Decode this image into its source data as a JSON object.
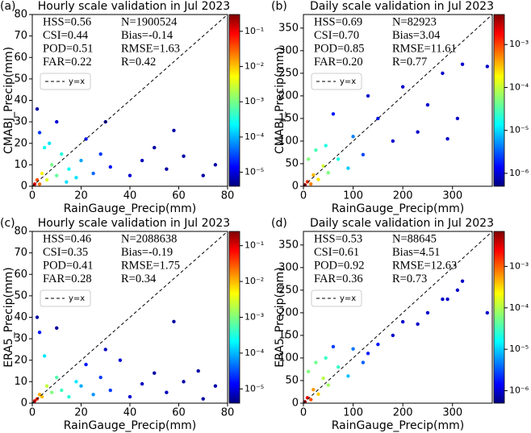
{
  "chart_data": [
    {
      "type": "scatter",
      "panel_label": "(a)",
      "title": "Hourly scale validation in Jul 2023",
      "xlabel": "RainGauge_Precip(mm)",
      "ylabel": "CMABJ_Precip(mm)",
      "xlim": [
        0,
        80
      ],
      "xticks": [
        0,
        20,
        40,
        60,
        80
      ],
      "ylim": [
        0,
        80
      ],
      "yticks": [
        0,
        10,
        20,
        30,
        40,
        50,
        60,
        70,
        80
      ],
      "stats": [
        "HSS=0.56",
        "N=1900524",
        "CSI=0.44",
        "Bias=-0.14",
        "POD=0.51",
        "RMSE=1.63",
        "FAR=0.22",
        "R=0.42"
      ],
      "legend_label": "y=x",
      "colormap": "jet",
      "colorbar_scale": "log",
      "clim": [
        4e-06,
        0.3
      ],
      "cticks": [
        {
          "value": 1e-05,
          "label": "10⁻⁵"
        },
        {
          "value": 0.0001,
          "label": "10⁻⁴"
        },
        {
          "value": 0.001,
          "label": "10⁻³"
        },
        {
          "value": 0.01,
          "label": "10⁻²"
        },
        {
          "value": 0.1,
          "label": "10⁻¹"
        }
      ],
      "x": [
        1,
        2,
        3,
        4,
        6,
        8,
        10,
        12,
        15,
        18,
        5,
        20,
        25,
        28,
        32,
        3,
        40,
        45,
        50,
        55,
        62,
        70,
        75,
        30,
        10,
        2,
        58,
        22,
        14,
        7
      ],
      "y": [
        1,
        3,
        1,
        6,
        3,
        10,
        5,
        15,
        8,
        4,
        18,
        12,
        6,
        15,
        9,
        25,
        5,
        12,
        18,
        8,
        14,
        5,
        10,
        30,
        30,
        36,
        26,
        22,
        2,
        20
      ],
      "density": [
        0.1,
        0.03,
        0.02,
        0.005,
        0.003,
        0.001,
        0.0008,
        0.0004,
        0.0003,
        0.0002,
        0.0003,
        0.0001,
        5e-05,
        3e-05,
        2e-05,
        3e-05,
        1e-05,
        8e-06,
        6e-06,
        6e-06,
        6e-06,
        6e-06,
        6e-06,
        6e-06,
        1e-05,
        6e-06,
        6e-06,
        2e-05,
        0.0002,
        0.0002
      ]
    },
    {
      "type": "scatter",
      "panel_label": "(b)",
      "title": "Daily scale validation in Jul 2023",
      "xlabel": "RainGauge_Precip(mm)",
      "ylabel": "CMABJ_Precip(mm)",
      "xlim": [
        0,
        380
      ],
      "xticks": [
        0,
        100,
        200,
        300
      ],
      "ylim": [
        0,
        380
      ],
      "yticks": [
        0,
        50,
        100,
        150,
        200,
        250,
        300,
        350
      ],
      "stats": [
        "HSS=0.69",
        "N=82923",
        "CSI=0.70",
        "Bias=3.04",
        "POD=0.85",
        "RMSE=11.61",
        "FAR=0.20",
        "R=0.77"
      ],
      "legend_label": "y=x",
      "colormap": "jet",
      "colorbar_scale": "log",
      "clim": [
        5e-07,
        0.005
      ],
      "cticks": [
        {
          "value": 1e-06,
          "label": "10⁻⁶"
        },
        {
          "value": 1e-05,
          "label": "10⁻⁵"
        },
        {
          "value": 0.0001,
          "label": "10⁻⁴"
        },
        {
          "value": 0.001,
          "label": "10⁻³"
        }
      ],
      "x": [
        3,
        8,
        15,
        20,
        30,
        40,
        50,
        10,
        70,
        90,
        100,
        120,
        150,
        180,
        200,
        250,
        280,
        320,
        310,
        370,
        60,
        130,
        230,
        290,
        25,
        45
      ],
      "y": [
        3,
        10,
        5,
        25,
        15,
        45,
        30,
        60,
        60,
        40,
        110,
        70,
        150,
        100,
        220,
        180,
        250,
        270,
        150,
        265,
        160,
        200,
        120,
        105,
        80,
        90
      ],
      "density": [
        0.003,
        0.001,
        0.0005,
        0.0003,
        0.0002,
        0.0001,
        5e-05,
        5e-05,
        2e-05,
        1e-05,
        5e-06,
        3e-06,
        2e-06,
        1e-06,
        1e-06,
        1e-06,
        1e-06,
        1e-06,
        1e-06,
        1e-06,
        2e-06,
        1e-06,
        1e-06,
        1e-06,
        3e-05,
        2e-05
      ]
    },
    {
      "type": "scatter",
      "panel_label": "(c)",
      "title": "Hourly scale validation in Jul 2023",
      "xlabel": "RainGauge_Precip(mm)",
      "ylabel": "ERA5_Precip(mm)",
      "xlim": [
        0,
        80
      ],
      "xticks": [
        0,
        20,
        40,
        60,
        80
      ],
      "ylim": [
        0,
        80
      ],
      "yticks": [
        0,
        10,
        20,
        30,
        40,
        50,
        60,
        70,
        80
      ],
      "stats": [
        "HSS=0.46",
        "N=2088638",
        "CSI=0.35",
        "Bias=-0.19",
        "POD=0.41",
        "RMSE=1.75",
        "FAR=0.28",
        "R=0.34"
      ],
      "legend_label": "y=x",
      "colormap": "jet",
      "colorbar_scale": "log",
      "clim": [
        4e-06,
        0.25
      ],
      "cticks": [
        {
          "value": 1e-05,
          "label": "10⁻⁵"
        },
        {
          "value": 0.0001,
          "label": "10⁻⁴"
        },
        {
          "value": 0.001,
          "label": "10⁻³"
        },
        {
          "value": 0.01,
          "label": "10⁻²"
        },
        {
          "value": 0.1,
          "label": "10⁻¹"
        }
      ],
      "x": [
        1,
        2,
        3,
        4,
        6,
        8,
        10,
        12,
        15,
        18,
        5,
        20,
        25,
        28,
        32,
        3,
        40,
        45,
        50,
        55,
        62,
        70,
        75,
        30,
        10,
        2,
        58,
        22,
        68,
        36
      ],
      "y": [
        1,
        2,
        4,
        3,
        8,
        5,
        12,
        6,
        3,
        10,
        22,
        8,
        4,
        12,
        6,
        33,
        3,
        9,
        14,
        5,
        10,
        2,
        8,
        25,
        35,
        40,
        38,
        18,
        15,
        20
      ],
      "density": [
        0.1,
        0.04,
        0.01,
        0.008,
        0.002,
        0.001,
        0.0006,
        0.0005,
        0.0004,
        0.0002,
        0.0002,
        0.0001,
        8e-05,
        3e-05,
        3e-05,
        2e-05,
        1e-05,
        8e-06,
        6e-06,
        8e-06,
        6e-06,
        6e-06,
        6e-06,
        8e-06,
        6e-06,
        6e-06,
        6e-06,
        2e-05,
        6e-06,
        1e-05
      ]
    },
    {
      "type": "scatter",
      "panel_label": "(d)",
      "title": "Daily scale validation in Jul 2023",
      "xlabel": "RainGauge_Precip(mm)",
      "ylabel": "ERA5_Precip(mm)",
      "xlim": [
        0,
        380
      ],
      "xticks": [
        0,
        100,
        200,
        300
      ],
      "ylim": [
        0,
        380
      ],
      "yticks": [
        0,
        50,
        100,
        150,
        200,
        250,
        300,
        350
      ],
      "stats": [
        "HSS=0.53",
        "N=88645",
        "CSI=0.61",
        "Bias=4.51",
        "POD=0.92",
        "RMSE=12.63",
        "FAR=0.36",
        "R=0.73"
      ],
      "legend_label": "y=x",
      "colormap": "jet",
      "colorbar_scale": "log",
      "clim": [
        5e-07,
        0.007
      ],
      "cticks": [
        {
          "value": 1e-06,
          "label": "10⁻⁶"
        },
        {
          "value": 1e-05,
          "label": "10⁻⁵"
        },
        {
          "value": 0.0001,
          "label": "10⁻⁴"
        },
        {
          "value": 0.001,
          "label": "10⁻³"
        }
      ],
      "x": [
        3,
        8,
        15,
        20,
        30,
        40,
        50,
        10,
        70,
        90,
        100,
        120,
        150,
        180,
        200,
        250,
        280,
        320,
        310,
        370,
        60,
        130,
        230,
        290,
        25,
        45
      ],
      "y": [
        3,
        12,
        8,
        30,
        20,
        55,
        40,
        70,
        80,
        60,
        120,
        90,
        130,
        150,
        180,
        200,
        230,
        270,
        250,
        200,
        125,
        110,
        175,
        230,
        90,
        100
      ],
      "density": [
        0.004,
        0.002,
        0.001,
        0.0005,
        0.0003,
        0.0001,
        8e-05,
        6e-05,
        3e-05,
        1e-05,
        5e-06,
        4e-06,
        2e-06,
        1e-06,
        1e-06,
        1e-06,
        1e-06,
        1e-06,
        1e-06,
        1e-06,
        3e-06,
        2e-06,
        1e-06,
        1e-06,
        5e-05,
        3e-05
      ]
    }
  ]
}
